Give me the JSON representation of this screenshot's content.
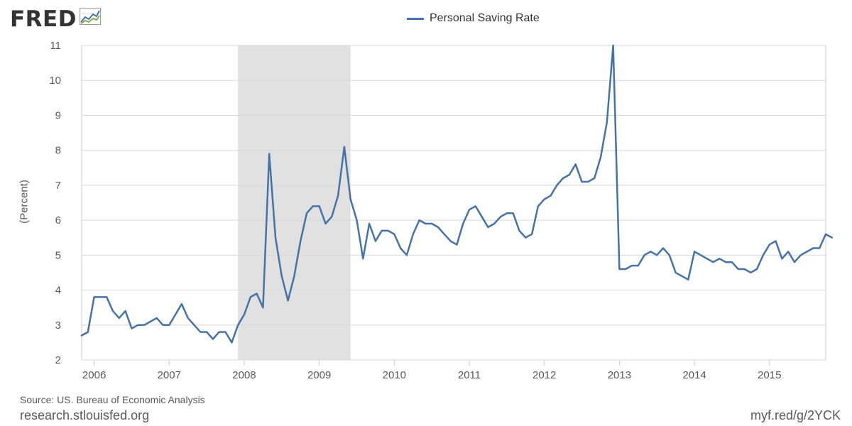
{
  "branding": {
    "logo_text": "FRED",
    "logo_icon": "trend-chart-icon"
  },
  "colors": {
    "series": "#4572a7",
    "recession": "#e1e1e1",
    "grid": "#d8d8d8"
  },
  "footer": {
    "source": "Source: US. Bureau of Economic Analysis",
    "site": "research.stlouisfed.org",
    "shortlink": "myf.red/g/2YCK"
  },
  "chart_data": {
    "type": "line",
    "title": "",
    "ylabel": "(Percent)",
    "xlabel": "",
    "ylim": [
      2,
      11
    ],
    "yticks": [
      2,
      3,
      4,
      5,
      6,
      7,
      8,
      9,
      10,
      11
    ],
    "xlim": [
      "2005-11",
      "2015-10"
    ],
    "xticks": [
      "2006",
      "2007",
      "2008",
      "2009",
      "2010",
      "2011",
      "2012",
      "2013",
      "2014",
      "2015"
    ],
    "grid": true,
    "legend_position": "top-center",
    "recession": {
      "start": "2007-12",
      "end": "2009-06"
    },
    "series": [
      {
        "name": "Personal Saving Rate",
        "frequency": "monthly",
        "start": "2005-11",
        "values": [
          2.7,
          2.8,
          3.8,
          3.8,
          3.8,
          3.4,
          3.2,
          3.4,
          2.9,
          3.0,
          3.0,
          3.1,
          3.2,
          3.0,
          3.0,
          3.3,
          3.6,
          3.2,
          3.0,
          2.8,
          2.8,
          2.6,
          2.8,
          2.8,
          2.5,
          3.0,
          3.3,
          3.8,
          3.9,
          3.5,
          7.9,
          5.5,
          4.4,
          3.7,
          4.4,
          5.4,
          6.2,
          6.4,
          6.4,
          5.9,
          6.1,
          6.7,
          8.1,
          6.6,
          6.0,
          4.9,
          5.9,
          5.4,
          5.7,
          5.7,
          5.6,
          5.2,
          5.0,
          5.6,
          6.0,
          5.9,
          5.9,
          5.8,
          5.6,
          5.4,
          5.3,
          5.9,
          6.3,
          6.4,
          6.1,
          5.8,
          5.9,
          6.1,
          6.2,
          6.2,
          5.7,
          5.5,
          5.6,
          6.4,
          6.6,
          6.7,
          7.0,
          7.2,
          7.3,
          7.6,
          7.1,
          7.1,
          7.2,
          7.8,
          8.8,
          11.0,
          4.6,
          4.6,
          4.7,
          4.7,
          5.0,
          5.1,
          5.0,
          5.2,
          5.0,
          4.5,
          4.4,
          4.3,
          5.1,
          5.0,
          4.9,
          4.8,
          4.9,
          4.8,
          4.8,
          4.6,
          4.6,
          4.5,
          4.6,
          5.0,
          5.3,
          5.4,
          4.9,
          5.1,
          4.8,
          5.0,
          5.1,
          5.2,
          5.2,
          5.6,
          5.5
        ]
      }
    ]
  }
}
